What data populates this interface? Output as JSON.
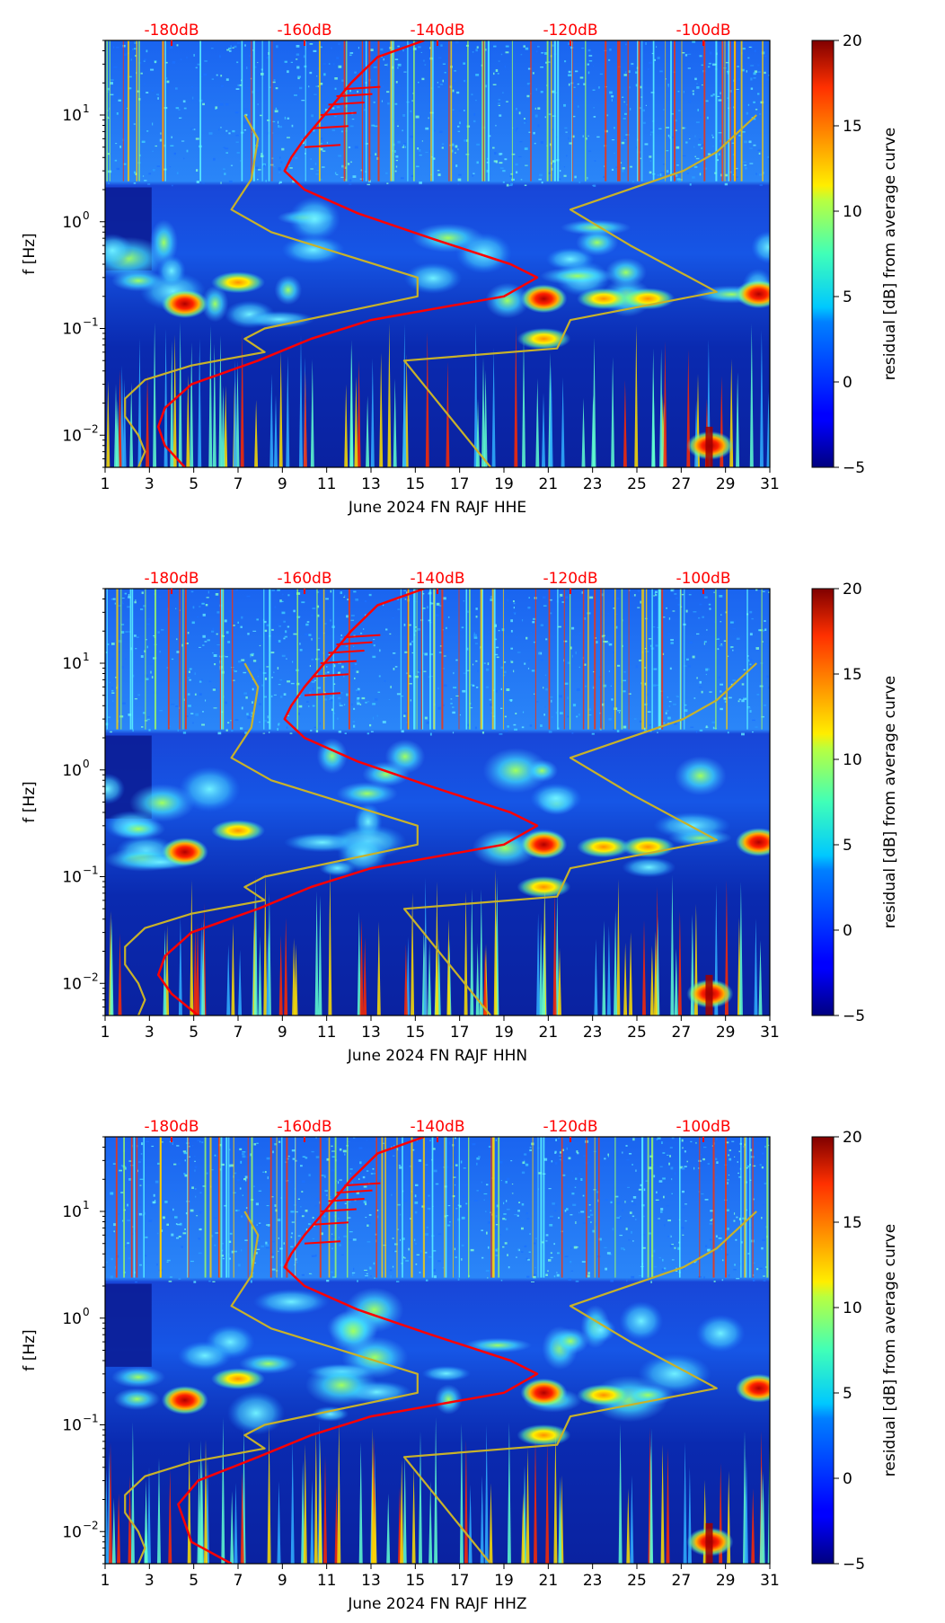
{
  "colors": {
    "psd_curve": "#ff0000",
    "model_curve": "#c8b22a",
    "db_labels": "#ff0000"
  },
  "colorbar": {
    "label": "residual [dB] from average curve",
    "ticks": [
      "20",
      "15",
      "10",
      "5",
      "0",
      "−5"
    ],
    "range": [
      -5,
      20
    ],
    "colormap": "jet"
  },
  "chart_data": [
    {
      "type": "heatmap",
      "title": "",
      "xlabel": "June 2024 FN RAJF  HHE",
      "ylabel": "f [Hz]",
      "x_ticks": [
        "1",
        "3",
        "5",
        "7",
        "9",
        "11",
        "13",
        "15",
        "17",
        "19",
        "21",
        "23",
        "25",
        "27",
        "29",
        "31"
      ],
      "xlim": [
        1,
        31
      ],
      "y_ticks": [
        "10",
        "10",
        "10",
        "10"
      ],
      "y_tick_exponents": [
        "1",
        "0",
        "−1",
        "−2"
      ],
      "ylim": [
        0.005,
        50
      ],
      "y_scale": "log",
      "top_ticks": [
        "-180dB",
        "-160dB",
        "-140dB",
        "-120dB",
        "-100dB"
      ],
      "top_tick_values": [
        -180,
        -160,
        -140,
        -120,
        -100
      ],
      "top_range_db": [
        -190,
        -90
      ],
      "series": [
        {
          "name": "average PSD (dB)",
          "color": "#ff0000",
          "freq": [
            0.005,
            0.008,
            0.012,
            0.018,
            0.03,
            0.05,
            0.08,
            0.12,
            0.2,
            0.3,
            0.4,
            0.7,
            1.2,
            2,
            3,
            4,
            6,
            10,
            20,
            35,
            50
          ],
          "db": [
            -178,
            -181,
            -182,
            -181,
            -177,
            -167,
            -159,
            -150,
            -130,
            -125,
            -129,
            -141,
            -152,
            -160,
            -163,
            -162,
            -160,
            -157,
            -153,
            -149,
            -142
          ]
        },
        {
          "name": "noise model low (dB)",
          "color": "#c8b22a",
          "freq": [
            0.005,
            0.007,
            0.01,
            0.015,
            0.022,
            0.033,
            0.045,
            0.06,
            0.08,
            0.1,
            0.2,
            0.3,
            0.8,
            1.3,
            2.5,
            6,
            10
          ],
          "db": [
            -185,
            -184,
            -185,
            -187,
            -187,
            -184,
            -177,
            -166,
            -169,
            -166,
            -143,
            -143,
            -165,
            -171,
            -168,
            -167,
            -169
          ]
        },
        {
          "name": "noise model high (dB)",
          "color": "#c8b22a",
          "freq": [
            0.005,
            0.05,
            0.065,
            0.12,
            0.22,
            0.6,
            1.3,
            3,
            4.5,
            10
          ],
          "db": [
            -132,
            -145,
            -122,
            -120,
            -98,
            -111,
            -120,
            -103,
            -98,
            -92
          ]
        }
      ],
      "spectral_features": [
        {
          "day": 4.6,
          "freq": 0.17,
          "level": 16
        },
        {
          "day": 20.8,
          "freq": 0.19,
          "level": 18
        },
        {
          "day": 20.8,
          "freq": 0.08,
          "level": 12
        },
        {
          "day": 23.5,
          "freq": 0.19,
          "level": 10
        },
        {
          "day": 25.5,
          "freq": 0.19,
          "level": 9
        },
        {
          "day": 30.5,
          "freq": 0.21,
          "level": 16
        },
        {
          "day": 28.3,
          "freq": 0.008,
          "level": 18
        },
        {
          "day": 7,
          "freq": 0.27,
          "level": 10
        },
        {
          "day": 2.5,
          "freq": 0.28,
          "level": 8
        }
      ]
    },
    {
      "type": "heatmap",
      "title": "",
      "xlabel": "June 2024 FN RAJF  HHN",
      "ylabel": "f [Hz]",
      "x_ticks": [
        "1",
        "3",
        "5",
        "7",
        "9",
        "11",
        "13",
        "15",
        "17",
        "19",
        "21",
        "23",
        "25",
        "27",
        "29",
        "31"
      ],
      "xlim": [
        1,
        31
      ],
      "y_ticks": [
        "10",
        "10",
        "10",
        "10"
      ],
      "y_tick_exponents": [
        "1",
        "0",
        "−1",
        "−2"
      ],
      "ylim": [
        0.005,
        50
      ],
      "y_scale": "log",
      "top_ticks": [
        "-180dB",
        "-160dB",
        "-140dB",
        "-120dB",
        "-100dB"
      ],
      "top_tick_values": [
        -180,
        -160,
        -140,
        -120,
        -100
      ],
      "top_range_db": [
        -190,
        -90
      ],
      "series": [
        {
          "name": "average PSD (dB)",
          "color": "#ff0000",
          "freq": [
            0.005,
            0.008,
            0.012,
            0.018,
            0.03,
            0.05,
            0.08,
            0.12,
            0.2,
            0.3,
            0.4,
            0.7,
            1.2,
            2,
            3,
            4,
            6,
            10,
            20,
            35,
            50
          ],
          "db": [
            -176,
            -180,
            -182,
            -181,
            -177,
            -167,
            -159,
            -150,
            -130,
            -125,
            -129,
            -141,
            -152,
            -160,
            -163,
            -162,
            -160,
            -157,
            -153,
            -149,
            -142
          ]
        },
        {
          "name": "noise model low (dB)",
          "color": "#c8b22a",
          "freq": [
            0.005,
            0.007,
            0.01,
            0.015,
            0.022,
            0.033,
            0.045,
            0.06,
            0.08,
            0.1,
            0.2,
            0.3,
            0.8,
            1.3,
            2.5,
            6,
            10
          ],
          "db": [
            -185,
            -184,
            -185,
            -187,
            -187,
            -184,
            -177,
            -166,
            -169,
            -166,
            -143,
            -143,
            -165,
            -171,
            -168,
            -167,
            -169
          ]
        },
        {
          "name": "noise model high (dB)",
          "color": "#c8b22a",
          "freq": [
            0.005,
            0.05,
            0.065,
            0.12,
            0.22,
            0.6,
            1.3,
            3,
            4.5,
            10
          ],
          "db": [
            -132,
            -145,
            -122,
            -120,
            -98,
            -111,
            -120,
            -103,
            -98,
            -92
          ]
        }
      ],
      "spectral_features": [
        {
          "day": 4.6,
          "freq": 0.17,
          "level": 15
        },
        {
          "day": 20.8,
          "freq": 0.2,
          "level": 18
        },
        {
          "day": 20.8,
          "freq": 0.08,
          "level": 12
        },
        {
          "day": 23.5,
          "freq": 0.19,
          "level": 10
        },
        {
          "day": 25.5,
          "freq": 0.19,
          "level": 9
        },
        {
          "day": 30.5,
          "freq": 0.21,
          "level": 16
        },
        {
          "day": 28.3,
          "freq": 0.008,
          "level": 18
        },
        {
          "day": 7,
          "freq": 0.27,
          "level": 10
        },
        {
          "day": 2.5,
          "freq": 0.28,
          "level": 8
        }
      ]
    },
    {
      "type": "heatmap",
      "title": "",
      "xlabel": "June 2024 FN RAJF  HHZ",
      "ylabel": "f [Hz]",
      "x_ticks": [
        "1",
        "3",
        "5",
        "7",
        "9",
        "11",
        "13",
        "15",
        "17",
        "19",
        "21",
        "23",
        "25",
        "27",
        "29",
        "31"
      ],
      "xlim": [
        1,
        31
      ],
      "y_ticks": [
        "10",
        "10",
        "10",
        "10"
      ],
      "y_tick_exponents": [
        "1",
        "0",
        "−1",
        "−2"
      ],
      "ylim": [
        0.005,
        50
      ],
      "y_scale": "log",
      "top_ticks": [
        "-180dB",
        "-160dB",
        "-140dB",
        "-120dB",
        "-100dB"
      ],
      "top_tick_values": [
        -180,
        -160,
        -140,
        -120,
        -100
      ],
      "top_range_db": [
        -190,
        -90
      ],
      "series": [
        {
          "name": "average PSD (dB)",
          "color": "#ff0000",
          "freq": [
            0.005,
            0.008,
            0.012,
            0.018,
            0.03,
            0.05,
            0.08,
            0.12,
            0.2,
            0.3,
            0.4,
            0.7,
            1.2,
            2,
            3,
            4,
            6,
            10,
            20,
            35,
            50
          ],
          "db": [
            -171,
            -177,
            -178,
            -179,
            -176,
            -167,
            -159,
            -150,
            -130,
            -125,
            -129,
            -141,
            -152,
            -160,
            -163,
            -162,
            -160,
            -157,
            -153,
            -149,
            -142
          ]
        },
        {
          "name": "noise model low (dB)",
          "color": "#c8b22a",
          "freq": [
            0.005,
            0.007,
            0.01,
            0.015,
            0.022,
            0.033,
            0.045,
            0.06,
            0.08,
            0.1,
            0.2,
            0.3,
            0.8,
            1.3,
            2.5,
            6,
            10
          ],
          "db": [
            -185,
            -184,
            -185,
            -187,
            -187,
            -184,
            -177,
            -166,
            -169,
            -166,
            -143,
            -143,
            -165,
            -171,
            -168,
            -167,
            -169
          ]
        },
        {
          "name": "noise model high (dB)",
          "color": "#c8b22a",
          "freq": [
            0.005,
            0.05,
            0.065,
            0.12,
            0.22,
            0.6,
            1.3,
            3,
            4.5,
            10
          ],
          "db": [
            -132,
            -145,
            -122,
            -120,
            -98,
            -111,
            -120,
            -103,
            -98,
            -92
          ]
        }
      ],
      "spectral_features": [
        {
          "day": 4.6,
          "freq": 0.17,
          "level": 14
        },
        {
          "day": 20.8,
          "freq": 0.2,
          "level": 17
        },
        {
          "day": 20.8,
          "freq": 0.08,
          "level": 11
        },
        {
          "day": 23.5,
          "freq": 0.19,
          "level": 10
        },
        {
          "day": 25.5,
          "freq": 0.19,
          "level": 8
        },
        {
          "day": 30.5,
          "freq": 0.22,
          "level": 16
        },
        {
          "day": 28.3,
          "freq": 0.008,
          "level": 18
        },
        {
          "day": 7,
          "freq": 0.27,
          "level": 9
        },
        {
          "day": 2.5,
          "freq": 0.28,
          "level": 8
        }
      ]
    }
  ]
}
